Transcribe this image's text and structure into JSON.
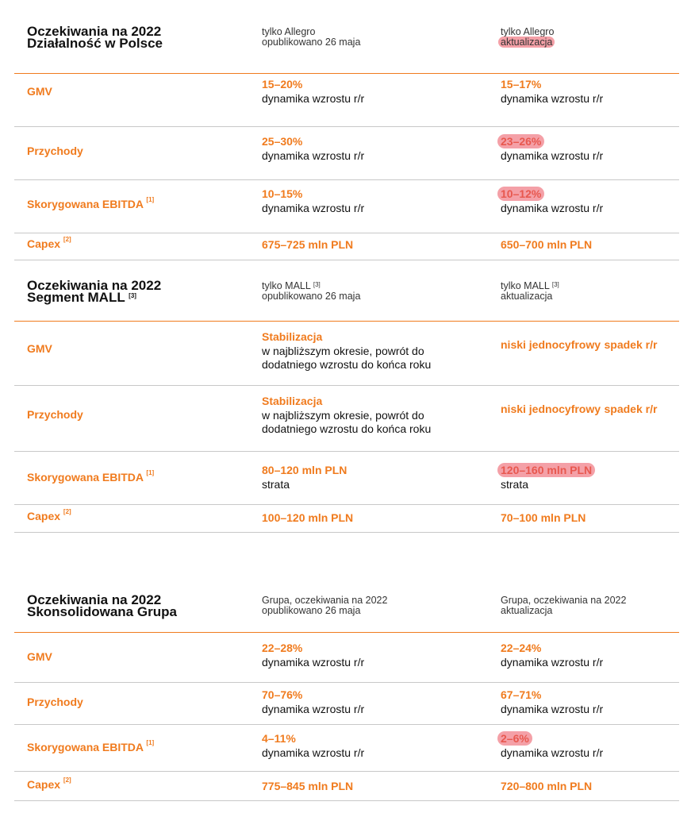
{
  "sections": [
    {
      "title_line1": "Oczekiwania na 2022",
      "title_line2": "Działalność w Polsce",
      "col1_line1": "tylko Allegro",
      "col1_line2": "opublikowano 26 maja",
      "col2_line1": "tylko Allegro",
      "col2_line2": "aktualizacja",
      "rows": [
        {
          "label": "GMV",
          "c1_value": "15–20%",
          "c1_sub": "dynamika wzrostu r/r",
          "c2_value": "15–17%",
          "c2_sub": "dynamika wzrostu r/r"
        },
        {
          "label": "Przychody",
          "c1_value": "25–30%",
          "c1_sub": "dynamika wzrostu r/r",
          "c2_value": "23–26%",
          "c2_sub": "dynamika wzrostu r/r"
        },
        {
          "label": "Skorygowana EBITDA",
          "label_note": "[1]",
          "c1_value": "10–15%",
          "c1_sub": "dynamika wzrostu r/r",
          "c2_value": "10–12%",
          "c2_sub": "dynamika wzrostu r/r"
        },
        {
          "label": "Capex",
          "label_note": "[2]",
          "c1_value": "675–725 mln PLN",
          "c2_value": "650–700 mln PLN"
        }
      ]
    },
    {
      "title_line1": "Oczekiwania na 2022",
      "title_line2": "Segment MALL",
      "title_note": "[3]",
      "col1_line1": "tylko MALL",
      "col1_note": "[3]",
      "col1_line2": "opublikowano 26 maja",
      "col2_line1": "tylko MALL",
      "col2_note": "[3]",
      "col2_line2": "aktualizacja",
      "rows": [
        {
          "label": "GMV",
          "c1_value": "Stabilizacja",
          "c1_sub1": "w najbliższym okresie, powrót do",
          "c1_sub2": "dodatniego wzrostu do końca roku",
          "c2_value1": "niski jednocyfrowy",
          "c2_value2": "spadek r/r"
        },
        {
          "label": "Przychody",
          "c1_value": "Stabilizacja",
          "c1_sub1": "w najbliższym okresie, powrót do",
          "c1_sub2": "dodatniego wzrostu do końca roku",
          "c2_value1": "niski jednocyfrowy",
          "c2_value2": "spadek r/r"
        },
        {
          "label": "Skorygowana EBITDA",
          "label_note": "[1]",
          "c1_value": "80–120 mln PLN",
          "c1_sub": "strata",
          "c2_value": "120–160 mln PLN",
          "c2_sub": "strata"
        },
        {
          "label": "Capex",
          "label_note": "[2]",
          "c1_value": "100–120 mln PLN",
          "c2_value": "70–100 mln PLN"
        }
      ]
    },
    {
      "title_line1": "Oczekiwania na 2022",
      "title_line2": "Skonsolidowana Grupa",
      "col1_line1": "Grupa, oczekiwania na 2022",
      "col1_line2": "opublikowano 26 maja",
      "col2_line1": "Grupa, oczekiwania na 2022",
      "col2_line2": "aktualizacja",
      "rows": [
        {
          "label": "GMV",
          "c1_value": "22–28%",
          "c1_sub": "dynamika wzrostu r/r",
          "c2_value": "22–24%",
          "c2_sub": "dynamika wzrostu r/r"
        },
        {
          "label": "Przychody",
          "c1_value": "70–76%",
          "c1_sub": "dynamika wzrostu r/r",
          "c2_value": "67–71%",
          "c2_sub": "dynamika wzrostu r/r"
        },
        {
          "label": "Skorygowana EBITDA",
          "label_note": "[1]",
          "c1_value": "4–11%",
          "c1_sub": "dynamika wzrostu r/r",
          "c2_value": "2–6%",
          "c2_sub": "dynamika wzrostu r/r"
        },
        {
          "label": "Capex",
          "label_note": "[2]",
          "c1_value": "775–845 mln PLN",
          "c2_value": "720–800 mln PLN"
        }
      ]
    }
  ],
  "highlight_color": "#f4a0a7",
  "accent_color": "#f07b1e"
}
